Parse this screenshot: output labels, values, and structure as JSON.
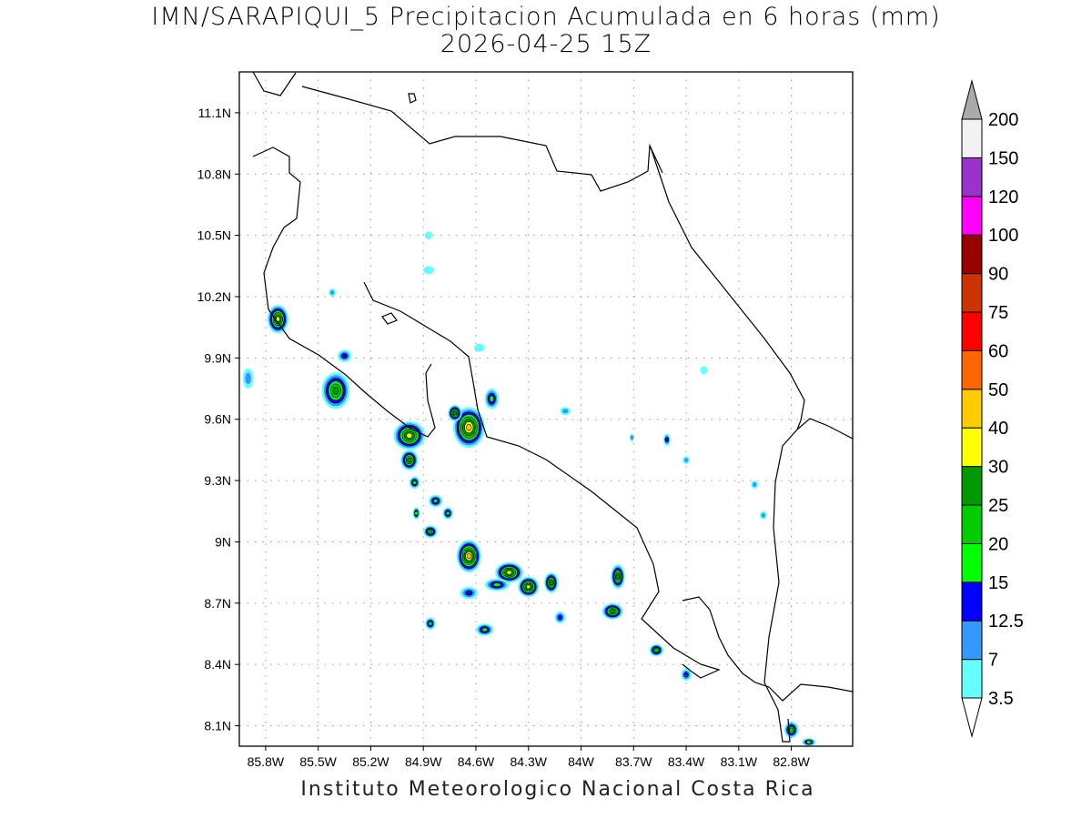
{
  "header": {
    "title": "IMN/SARAPIQUI_5 Precipitacion Acumulada en 6 horas (mm)",
    "subtitle": "2026-04-25 15Z"
  },
  "footer": {
    "credit": "Instituto Meteorologico Nacional Costa Rica"
  },
  "chart_data": {
    "type": "heatmap",
    "title": "IMN/SARAPIQUI_5 Precipitacion Acumulada en 6 horas (mm)",
    "subtitle": "2026-04-25 15Z",
    "x_range_lon": [
      -85.95,
      -82.45
    ],
    "y_range_lat": [
      8.0,
      11.3
    ],
    "x_ticks": [
      {
        "value": -85.8,
        "label": "85.8W"
      },
      {
        "value": -85.5,
        "label": "85.5W"
      },
      {
        "value": -85.2,
        "label": "85.2W"
      },
      {
        "value": -84.9,
        "label": "84.9W"
      },
      {
        "value": -84.6,
        "label": "84.6W"
      },
      {
        "value": -84.3,
        "label": "84.3W"
      },
      {
        "value": -84.0,
        "label": "84W"
      },
      {
        "value": -83.7,
        "label": "83.7W"
      },
      {
        "value": -83.4,
        "label": "83.4W"
      },
      {
        "value": -83.1,
        "label": "83.1W"
      },
      {
        "value": -82.8,
        "label": "82.8W"
      }
    ],
    "y_ticks": [
      {
        "value": 11.1,
        "label": "11.1N"
      },
      {
        "value": 10.8,
        "label": "10.8N"
      },
      {
        "value": 10.5,
        "label": "10.5N"
      },
      {
        "value": 10.2,
        "label": "10.2N"
      },
      {
        "value": 9.9,
        "label": "9.9N"
      },
      {
        "value": 9.6,
        "label": "9.6N"
      },
      {
        "value": 9.3,
        "label": "9.3N"
      },
      {
        "value": 9.0,
        "label": "9N"
      },
      {
        "value": 8.7,
        "label": "8.7N"
      },
      {
        "value": 8.4,
        "label": "8.4N"
      },
      {
        "value": 8.1,
        "label": "8.1N"
      }
    ],
    "grid": true,
    "colorbar": {
      "placement": "right",
      "levels": [
        "3.5",
        "7",
        "12.5",
        "15",
        "20",
        "25",
        "30",
        "40",
        "50",
        "60",
        "75",
        "90",
        "100",
        "120",
        "150",
        "200"
      ],
      "colors": [
        "#66ffff",
        "#3399ff",
        "#0000ff",
        "#00ff00",
        "#00cc00",
        "#009900",
        "#ffff00",
        "#ffcc00",
        "#ff6600",
        "#ff0000",
        "#cc3300",
        "#990000",
        "#ff00ff",
        "#9933cc",
        "#f2f2f2"
      ],
      "over_color": "#aaaaaa",
      "under_color": "#ffffff"
    },
    "cells": [
      {
        "lon": -85.73,
        "lat": 10.09,
        "max": 30,
        "rx": 0.06,
        "ry": 0.07
      },
      {
        "lon": -85.4,
        "lat": 9.74,
        "max": 25,
        "rx": 0.08,
        "ry": 0.09
      },
      {
        "lon": -84.98,
        "lat": 9.52,
        "max": 30,
        "rx": 0.09,
        "ry": 0.07
      },
      {
        "lon": -84.98,
        "lat": 9.4,
        "max": 25,
        "rx": 0.05,
        "ry": 0.05
      },
      {
        "lon": -84.64,
        "lat": 9.56,
        "max": 40,
        "rx": 0.09,
        "ry": 0.1
      },
      {
        "lon": -84.72,
        "lat": 9.63,
        "max": 25,
        "rx": 0.04,
        "ry": 0.04
      },
      {
        "lon": -84.51,
        "lat": 9.7,
        "max": 15,
        "rx": 0.04,
        "ry": 0.05
      },
      {
        "lon": -84.95,
        "lat": 9.29,
        "max": 15,
        "rx": 0.03,
        "ry": 0.03
      },
      {
        "lon": -84.83,
        "lat": 9.2,
        "max": 15,
        "rx": 0.04,
        "ry": 0.03
      },
      {
        "lon": -84.76,
        "lat": 9.14,
        "max": 15,
        "rx": 0.03,
        "ry": 0.03
      },
      {
        "lon": -84.94,
        "lat": 9.14,
        "max": 15,
        "rx": 0.02,
        "ry": 0.03
      },
      {
        "lon": -84.86,
        "lat": 9.05,
        "max": 20,
        "rx": 0.04,
        "ry": 0.03
      },
      {
        "lon": -84.64,
        "lat": 8.93,
        "max": 40,
        "rx": 0.07,
        "ry": 0.08
      },
      {
        "lon": -84.41,
        "lat": 8.85,
        "max": 30,
        "rx": 0.08,
        "ry": 0.05
      },
      {
        "lon": -84.48,
        "lat": 8.79,
        "max": 15,
        "rx": 0.07,
        "ry": 0.03
      },
      {
        "lon": -84.3,
        "lat": 8.78,
        "max": 30,
        "rx": 0.06,
        "ry": 0.05
      },
      {
        "lon": -84.17,
        "lat": 8.8,
        "max": 25,
        "rx": 0.04,
        "ry": 0.05
      },
      {
        "lon": -83.79,
        "lat": 8.83,
        "max": 25,
        "rx": 0.04,
        "ry": 0.06
      },
      {
        "lon": -83.82,
        "lat": 8.66,
        "max": 25,
        "rx": 0.06,
        "ry": 0.04
      },
      {
        "lon": -83.57,
        "lat": 8.47,
        "max": 20,
        "rx": 0.04,
        "ry": 0.03
      },
      {
        "lon": -82.8,
        "lat": 8.08,
        "max": 20,
        "rx": 0.04,
        "ry": 0.04
      },
      {
        "lon": -82.7,
        "lat": 8.02,
        "max": 15,
        "rx": 0.04,
        "ry": 0.02
      },
      {
        "lon": -84.86,
        "lat": 8.6,
        "max": 15,
        "rx": 0.03,
        "ry": 0.03
      },
      {
        "lon": -84.55,
        "lat": 8.57,
        "max": 15,
        "rx": 0.05,
        "ry": 0.03
      },
      {
        "lon": -84.64,
        "lat": 8.75,
        "max": 12.5,
        "rx": 0.05,
        "ry": 0.03
      },
      {
        "lon": -84.12,
        "lat": 8.63,
        "max": 12.5,
        "rx": 0.03,
        "ry": 0.03
      },
      {
        "lon": -85.35,
        "lat": 9.91,
        "max": 12.5,
        "rx": 0.04,
        "ry": 0.03
      },
      {
        "lon": -85.42,
        "lat": 10.22,
        "max": 7,
        "rx": 0.02,
        "ry": 0.02
      },
      {
        "lon": -83.51,
        "lat": 9.5,
        "max": 12.5,
        "rx": 0.02,
        "ry": 0.03
      },
      {
        "lon": -83.4,
        "lat": 9.4,
        "max": 7,
        "rx": 0.02,
        "ry": 0.02
      },
      {
        "lon": -84.09,
        "lat": 9.64,
        "max": 7,
        "rx": 0.03,
        "ry": 0.02
      },
      {
        "lon": -85.9,
        "lat": 9.8,
        "max": 7,
        "rx": 0.03,
        "ry": 0.05
      },
      {
        "lon": -84.58,
        "lat": 9.95,
        "max": 3.5,
        "rx": 0.03,
        "ry": 0.02
      },
      {
        "lon": -84.87,
        "lat": 10.33,
        "max": 3.5,
        "rx": 0.03,
        "ry": 0.02
      },
      {
        "lon": -84.87,
        "lat": 10.5,
        "max": 3.5,
        "rx": 0.02,
        "ry": 0.02
      },
      {
        "lon": -83.4,
        "lat": 8.35,
        "max": 12.5,
        "rx": 0.03,
        "ry": 0.03
      },
      {
        "lon": -83.01,
        "lat": 9.28,
        "max": 7,
        "rx": 0.02,
        "ry": 0.02
      },
      {
        "lon": -82.96,
        "lat": 9.13,
        "max": 7,
        "rx": 0.02,
        "ry": 0.02
      },
      {
        "lon": -83.3,
        "lat": 9.84,
        "max": 3.5,
        "rx": 0.02,
        "ry": 0.02
      },
      {
        "lon": -83.71,
        "lat": 9.51,
        "max": 7,
        "rx": 0.01,
        "ry": 0.02
      }
    ]
  }
}
